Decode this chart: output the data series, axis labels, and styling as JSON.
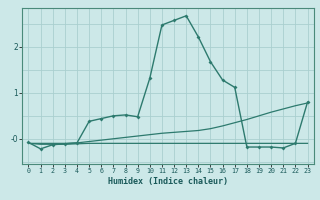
{
  "title": "",
  "xlabel": "Humidex (Indice chaleur)",
  "background_color": "#cce8e8",
  "grid_color": "#aacfcf",
  "line_color": "#2d7a6e",
  "xlim": [
    -0.5,
    23.5
  ],
  "ylim": [
    -0.55,
    2.85
  ],
  "xticks": [
    0,
    1,
    2,
    3,
    4,
    5,
    6,
    7,
    8,
    9,
    10,
    11,
    12,
    13,
    14,
    15,
    16,
    17,
    18,
    19,
    20,
    21,
    22,
    23
  ],
  "yticks": [
    0,
    1,
    2
  ],
  "ytick_labels": [
    "-0",
    "1",
    "2"
  ],
  "grid_y": [
    -0.5,
    0.0,
    0.5,
    1.0,
    1.5,
    2.0,
    2.5
  ],
  "main_x": [
    0,
    1,
    2,
    3,
    4,
    5,
    6,
    7,
    8,
    9,
    10,
    11,
    12,
    13,
    14,
    15,
    16,
    17,
    18,
    19,
    20,
    21,
    22,
    23
  ],
  "main_y": [
    -0.08,
    -0.22,
    -0.13,
    -0.11,
    -0.09,
    0.38,
    0.44,
    0.5,
    0.52,
    0.48,
    1.32,
    2.48,
    2.58,
    2.68,
    2.22,
    1.68,
    1.28,
    1.12,
    -0.18,
    -0.18,
    -0.18,
    -0.2,
    -0.1,
    0.8
  ],
  "line2_x": [
    0,
    1,
    2,
    3,
    4,
    5,
    6,
    7,
    8,
    9,
    10,
    11,
    12,
    13,
    14,
    15,
    16,
    17,
    18,
    19,
    20,
    21,
    22,
    23
  ],
  "line2_y": [
    -0.1,
    -0.1,
    -0.1,
    -0.1,
    -0.09,
    -0.06,
    -0.03,
    0.0,
    0.03,
    0.06,
    0.09,
    0.12,
    0.14,
    0.16,
    0.18,
    0.22,
    0.28,
    0.35,
    0.42,
    0.5,
    0.58,
    0.65,
    0.72,
    0.78
  ],
  "line3_x": [
    0,
    1,
    2,
    3,
    4,
    5,
    6,
    7,
    8,
    9,
    10,
    11,
    12,
    13,
    14,
    15,
    16,
    17,
    18,
    19,
    20,
    21,
    22,
    23
  ],
  "line3_y": [
    -0.1,
    -0.12,
    -0.12,
    -0.12,
    -0.11,
    -0.1,
    -0.1,
    -0.1,
    -0.1,
    -0.1,
    -0.1,
    -0.1,
    -0.1,
    -0.1,
    -0.1,
    -0.1,
    -0.1,
    -0.1,
    -0.1,
    -0.1,
    -0.1,
    -0.1,
    -0.1,
    -0.1
  ]
}
